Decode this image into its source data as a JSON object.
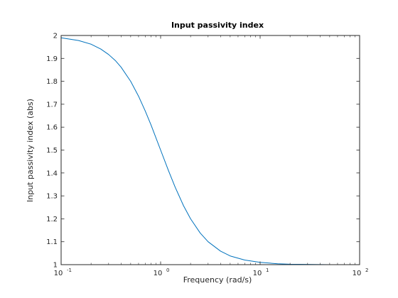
{
  "chart_data": {
    "type": "line",
    "title": "Input passivity index",
    "xlabel": "Frequency (rad/s)",
    "ylabel": "Input passivity index (abs)",
    "xscale": "log",
    "xlim": [
      0.1,
      100
    ],
    "ylim": [
      1,
      2
    ],
    "grid": false,
    "x_ticks": [
      {
        "value": 0.1,
        "base": "10",
        "exp": "-1"
      },
      {
        "value": 1,
        "base": "10",
        "exp": "0"
      },
      {
        "value": 10,
        "base": "10",
        "exp": "1"
      },
      {
        "value": 100,
        "base": "10",
        "exp": "2"
      }
    ],
    "y_ticks": [
      1,
      1.1,
      1.2,
      1.3,
      1.4,
      1.5,
      1.6,
      1.7,
      1.8,
      1.9,
      2
    ],
    "y_tick_labels": [
      "1",
      "1.1",
      "1.2",
      "1.3",
      "1.4",
      "1.5",
      "1.6",
      "1.7",
      "1.8",
      "1.9",
      "2"
    ],
    "series": [
      {
        "color": "#0072BD",
        "x": [
          0.1,
          0.15,
          0.2,
          0.25,
          0.3,
          0.35,
          0.4,
          0.5,
          0.6,
          0.7,
          0.8,
          1.0,
          1.2,
          1.4,
          1.7,
          2.0,
          2.5,
          3.0,
          4.0,
          5.0,
          7.0,
          10.0,
          15.0,
          20.0,
          30.0,
          50.0,
          100.0
        ],
        "y": [
          1.99,
          1.978,
          1.962,
          1.941,
          1.917,
          1.891,
          1.862,
          1.8,
          1.735,
          1.671,
          1.61,
          1.5,
          1.41,
          1.338,
          1.257,
          1.2,
          1.138,
          1.1,
          1.059,
          1.038,
          1.02,
          1.01,
          1.004,
          1.002,
          1.001,
          1.0,
          1.0
        ]
      }
    ]
  }
}
